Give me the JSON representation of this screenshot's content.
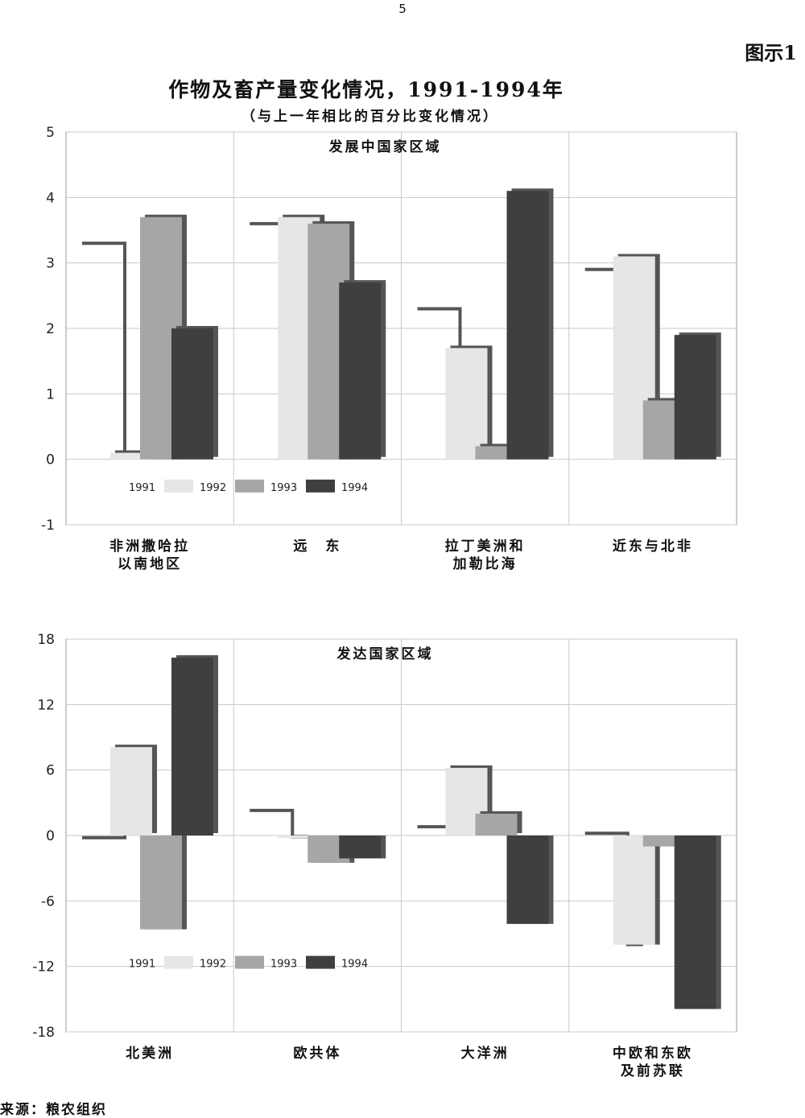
{
  "page_number": "5",
  "figure_label": "图示1",
  "title": "作物及畜产量变化情况，1991-1994年",
  "subtitle": "（与上一年相比的百分比变化情况）",
  "source": "来源：粮农组织",
  "colors": {
    "y1991": "#555555",
    "y1992": "#e6e6e6",
    "y1993": "#a6a6a6",
    "y1994": "#3f3f3f",
    "grid": "#c8c8c8",
    "frame": "#999999"
  },
  "chart_data": [
    {
      "type": "bar",
      "title": "发展中国家区域",
      "ylim": [
        -1,
        5
      ],
      "yticks": [
        -1,
        0,
        1,
        2,
        3,
        4,
        5
      ],
      "categories": [
        [
          "非洲撒哈拉",
          "以南地区"
        ],
        [
          "远　东"
        ],
        [
          "拉丁美洲和",
          "加勒比海"
        ],
        [
          "近东与北非"
        ]
      ],
      "legend": [
        "1991",
        "1992",
        "1993",
        "1994"
      ],
      "series": [
        {
          "name": "1991",
          "values": [
            3.3,
            3.6,
            2.3,
            2.9
          ]
        },
        {
          "name": "1992",
          "values": [
            0.1,
            3.7,
            1.7,
            3.1
          ]
        },
        {
          "name": "1993",
          "values": [
            3.7,
            3.6,
            0.2,
            0.9
          ]
        },
        {
          "name": "1994",
          "values": [
            2.0,
            2.7,
            4.1,
            1.9
          ]
        }
      ]
    },
    {
      "type": "bar",
      "title": "发达国家区域",
      "ylim": [
        -18,
        18
      ],
      "yticks": [
        -18,
        -12,
        -6,
        0,
        6,
        12,
        18
      ],
      "categories": [
        [
          "北美洲"
        ],
        [
          "欧共体"
        ],
        [
          "大洋洲"
        ],
        [
          "中欧和东欧",
          "及前苏联"
        ]
      ],
      "legend": [
        "1991",
        "1992",
        "1993",
        "1994"
      ],
      "series": [
        {
          "name": "1991",
          "values": [
            -0.2,
            2.3,
            0.8,
            0.2
          ]
        },
        {
          "name": "1992",
          "values": [
            8.1,
            -0.1,
            6.2,
            -10.0
          ]
        },
        {
          "name": "1993",
          "values": [
            -8.6,
            -2.5,
            2.0,
            -1.0
          ]
        },
        {
          "name": "1994",
          "values": [
            16.3,
            -2.1,
            -8.1,
            -15.9
          ]
        }
      ]
    }
  ]
}
